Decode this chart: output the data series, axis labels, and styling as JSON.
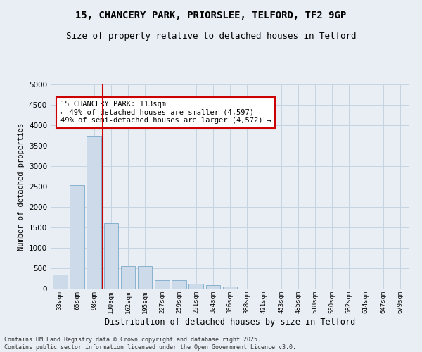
{
  "title_line1": "15, CHANCERY PARK, PRIORSLEE, TELFORD, TF2 9GP",
  "title_line2": "Size of property relative to detached houses in Telford",
  "xlabel": "Distribution of detached houses by size in Telford",
  "ylabel": "Number of detached properties",
  "categories": [
    "33sqm",
    "65sqm",
    "98sqm",
    "130sqm",
    "162sqm",
    "195sqm",
    "227sqm",
    "259sqm",
    "291sqm",
    "324sqm",
    "356sqm",
    "388sqm",
    "421sqm",
    "453sqm",
    "485sqm",
    "518sqm",
    "550sqm",
    "582sqm",
    "614sqm",
    "647sqm",
    "679sqm"
  ],
  "values": [
    350,
    2530,
    3750,
    1600,
    550,
    550,
    200,
    200,
    120,
    80,
    50,
    0,
    0,
    0,
    0,
    0,
    0,
    0,
    0,
    0,
    0
  ],
  "bar_color": "#ccdaea",
  "bar_edge_color": "#7aaac8",
  "vline_x_data": 2.5,
  "vline_color": "#cc0000",
  "annotation_text": "15 CHANCERY PARK: 113sqm\n← 49% of detached houses are smaller (4,597)\n49% of semi-detached houses are larger (4,572) →",
  "annotation_box_color": "#ffffff",
  "annotation_box_edge": "#cc0000",
  "annotation_fontsize": 7.5,
  "ylim": [
    0,
    5000
  ],
  "yticks": [
    0,
    500,
    1000,
    1500,
    2000,
    2500,
    3000,
    3500,
    4000,
    4500,
    5000
  ],
  "grid_color": "#c5d3e0",
  "background_color": "#e8eef4",
  "footer": "Contains HM Land Registry data © Crown copyright and database right 2025.\nContains public sector information licensed under the Open Government Licence v3.0.",
  "title_fontsize": 10,
  "subtitle_fontsize": 9,
  "xlabel_fontsize": 8.5,
  "ylabel_fontsize": 7.5,
  "tick_fontsize": 7.5,
  "xtick_fontsize": 6.5
}
